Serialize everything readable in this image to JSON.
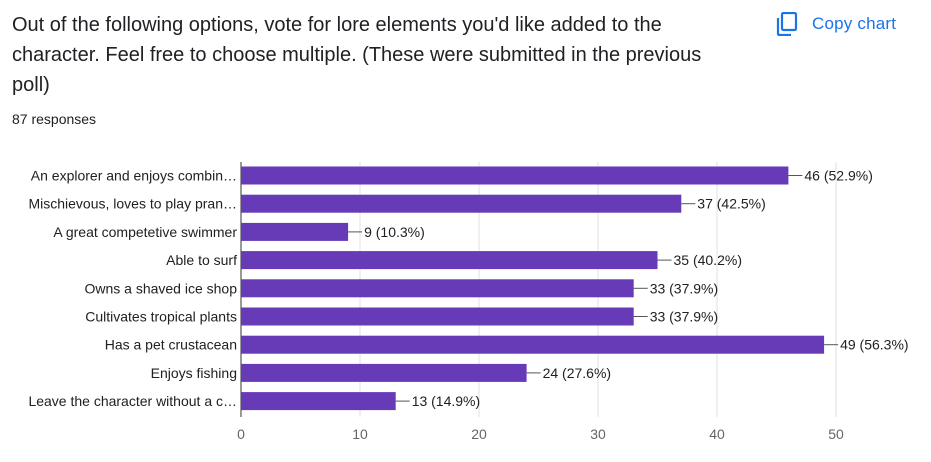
{
  "header": {
    "question": "Out of the following options, vote for lore elements you'd like added to the character. Feel free to choose multiple. (These were submitted in the previous poll)",
    "responses": "87 responses",
    "copy_label": "Copy chart",
    "copy_icon": "copy-icon"
  },
  "colors": {
    "bar": "#673ab7",
    "accent": "#1a73e8",
    "text": "#202124",
    "grid": "#e0e0e0",
    "axis": "#666666"
  },
  "chart_data": {
    "type": "bar",
    "orientation": "horizontal",
    "categories": [
      "An explorer and enjoys combin…",
      "Mischievous, loves to play pran…",
      "A great competetive swimmer",
      "Able to surf",
      "Owns a shaved ice shop",
      "Cultivates tropical plants",
      "Has a pet crustacean",
      "Enjoys fishing",
      "Leave the character without a c…"
    ],
    "values": [
      46,
      37,
      9,
      35,
      33,
      33,
      49,
      24,
      13
    ],
    "value_labels": [
      "46 (52.9%)",
      "37 (42.5%)",
      "9 (10.3%)",
      "35 (40.2%)",
      "33 (37.9%)",
      "33 (37.9%)",
      "49 (56.3%)",
      "24 (27.6%)",
      "13 (14.9%)"
    ],
    "xlim": [
      0,
      50
    ],
    "xticks": [
      0,
      10,
      20,
      30,
      40,
      50
    ],
    "xtick_labels": [
      "0",
      "10",
      "20",
      "30",
      "40",
      "50"
    ],
    "grid": true,
    "legend": "none"
  }
}
